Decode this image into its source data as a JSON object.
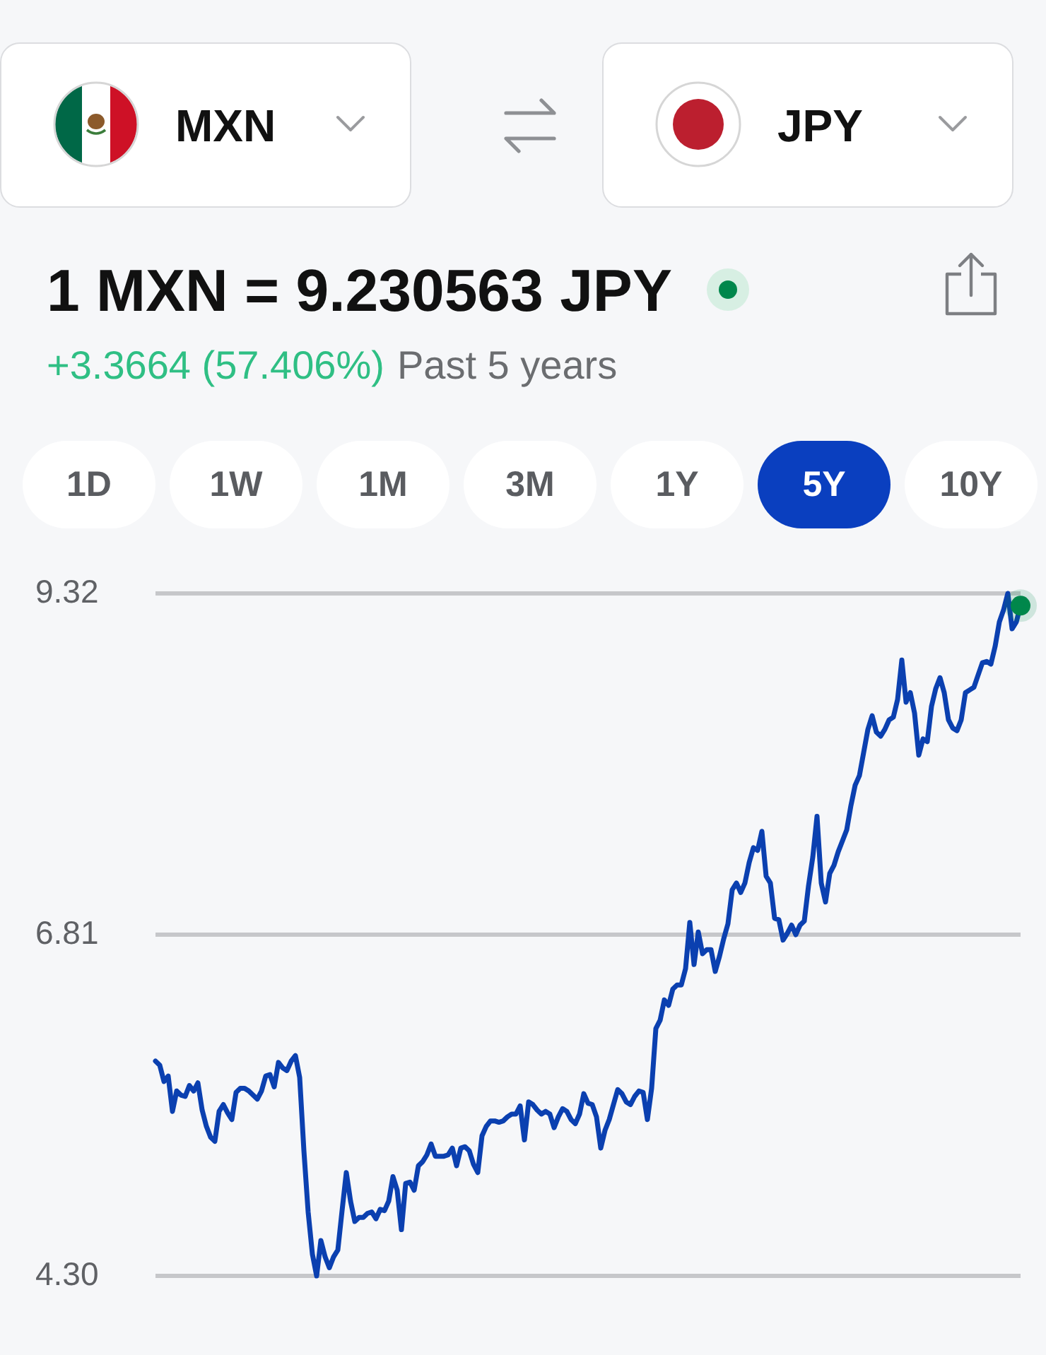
{
  "chart_data": {
    "type": "line",
    "title": "1 MXN = 9.230563 JPY",
    "subtitle": "+3.3664 (57.406%)",
    "annotations": [
      "Past 5 years",
      "MXN",
      "JPY",
      "1D",
      "1W",
      "1M",
      "3M",
      "1Y",
      "5Y",
      "10Y"
    ],
    "categories": [
      null,
      null,
      null,
      null,
      null,
      null,
      null,
      null,
      null,
      null,
      null,
      null,
      null,
      null,
      null,
      null,
      null,
      null,
      null,
      null,
      null,
      null,
      null,
      null,
      null,
      null,
      null,
      null,
      null,
      null,
      null,
      null,
      null,
      null,
      null,
      null,
      null,
      null,
      null,
      null,
      null,
      null,
      null,
      null,
      null,
      null,
      null,
      null,
      null,
      null,
      null,
      null,
      null,
      null,
      null,
      null,
      null,
      null,
      null,
      null,
      null,
      null,
      null,
      null,
      null,
      null,
      null,
      null,
      null,
      null,
      null,
      null,
      null,
      null,
      null,
      null,
      null,
      null,
      null,
      null,
      null,
      null,
      null,
      null,
      null,
      null,
      null,
      null,
      null,
      null,
      null,
      null,
      null,
      null,
      null,
      null,
      null,
      null,
      null,
      null,
      null,
      null,
      null,
      null,
      null,
      null,
      null,
      null,
      null,
      null,
      null,
      null,
      null,
      null,
      null,
      null,
      null,
      null,
      null,
      null,
      null,
      null,
      null,
      null,
      null,
      null,
      null,
      null,
      null,
      null,
      null,
      null,
      null,
      null,
      null,
      null,
      null,
      null,
      null,
      null,
      null,
      null,
      null,
      null,
      null,
      null,
      null,
      null,
      null,
      null,
      null,
      null,
      null,
      null,
      null,
      null,
      null,
      null,
      null,
      null,
      null,
      null,
      null,
      null,
      null,
      null,
      null,
      null,
      null,
      null,
      null,
      null,
      null,
      null,
      null,
      null,
      null,
      null,
      null,
      null,
      null,
      null,
      null,
      null,
      null,
      null,
      null,
      null,
      null,
      null,
      null,
      null,
      null,
      null,
      null,
      null,
      null,
      null,
      null,
      null,
      null,
      null,
      null,
      null,
      null
    ],
    "series": [
      {
        "color": "#0b40b0",
        "values": [
          5.88,
          5.85,
          5.73,
          5.77,
          5.51,
          5.66,
          5.63,
          5.62,
          5.7,
          5.66,
          5.72,
          5.52,
          5.4,
          5.32,
          5.29,
          5.51,
          5.56,
          5.5,
          5.45,
          5.65,
          5.68,
          5.68,
          5.66,
          5.63,
          5.6,
          5.66,
          5.77,
          5.78,
          5.69,
          5.87,
          5.83,
          5.81,
          5.88,
          5.92,
          5.76,
          5.22,
          4.77,
          4.46,
          4.3,
          4.56,
          4.44,
          4.36,
          4.44,
          4.49,
          4.78,
          5.06,
          4.85,
          4.7,
          4.73,
          4.73,
          4.76,
          4.77,
          4.72,
          4.79,
          4.78,
          4.85,
          5.03,
          4.93,
          4.64,
          4.98,
          4.99,
          4.93,
          5.11,
          5.14,
          5.19,
          5.27,
          5.18,
          5.18,
          5.18,
          5.19,
          5.24,
          5.11,
          5.24,
          5.25,
          5.22,
          5.12,
          5.06,
          5.33,
          5.4,
          5.44,
          5.44,
          5.43,
          5.44,
          5.47,
          5.49,
          5.49,
          5.55,
          5.3,
          5.58,
          5.56,
          5.52,
          5.49,
          5.51,
          5.49,
          5.39,
          5.47,
          5.53,
          5.51,
          5.45,
          5.42,
          5.49,
          5.64,
          5.57,
          5.56,
          5.47,
          5.24,
          5.37,
          5.45,
          5.56,
          5.67,
          5.64,
          5.58,
          5.56,
          5.62,
          5.66,
          5.65,
          5.45,
          5.68,
          6.12,
          6.18,
          6.33,
          6.29,
          6.41,
          6.44,
          6.44,
          6.56,
          6.9,
          6.59,
          6.83,
          6.67,
          6.7,
          6.7,
          6.54,
          6.65,
          6.78,
          6.89,
          7.14,
          7.19,
          7.12,
          7.19,
          7.34,
          7.45,
          7.43,
          7.57,
          7.24,
          7.19,
          6.93,
          6.92,
          6.77,
          6.82,
          6.88,
          6.81,
          6.88,
          6.91,
          7.17,
          7.38,
          7.68,
          7.19,
          7.05,
          7.26,
          7.32,
          7.42,
          7.5,
          7.58,
          7.76,
          7.91,
          7.98,
          8.15,
          8.32,
          8.42,
          8.3,
          8.27,
          8.32,
          8.39,
          8.41,
          8.54,
          8.83,
          8.52,
          8.59,
          8.44,
          8.13,
          8.25,
          8.23,
          8.49,
          8.62,
          8.7,
          8.59,
          8.39,
          8.33,
          8.31,
          8.39,
          8.59,
          8.61,
          8.63,
          8.72,
          8.81,
          8.82,
          8.8,
          8.93,
          9.11,
          9.2,
          9.32,
          9.06,
          9.11,
          9.23
        ]
      },
      {
        "type": "scatter",
        "color": "#00874c",
        "marker": "circle",
        "values": [
          null,
          null,
          null,
          null,
          null,
          null,
          null,
          null,
          null,
          null,
          null,
          null,
          null,
          null,
          null,
          null,
          null,
          null,
          null,
          null,
          null,
          null,
          null,
          null,
          null,
          null,
          null,
          null,
          null,
          null,
          null,
          null,
          null,
          null,
          null,
          null,
          null,
          null,
          null,
          null,
          null,
          null,
          null,
          null,
          null,
          null,
          null,
          null,
          null,
          null,
          null,
          null,
          null,
          null,
          null,
          null,
          null,
          null,
          null,
          null,
          null,
          null,
          null,
          null,
          null,
          null,
          null,
          null,
          null,
          null,
          null,
          null,
          null,
          null,
          null,
          null,
          null,
          null,
          null,
          null,
          null,
          null,
          null,
          null,
          null,
          null,
          null,
          null,
          null,
          null,
          null,
          null,
          null,
          null,
          null,
          null,
          null,
          null,
          null,
          null,
          null,
          null,
          null,
          null,
          null,
          null,
          null,
          null,
          null,
          null,
          null,
          null,
          null,
          null,
          null,
          null,
          null,
          null,
          null,
          null,
          null,
          null,
          null,
          null,
          null,
          null,
          null,
          null,
          null,
          null,
          null,
          null,
          null,
          null,
          null,
          null,
          null,
          null,
          null,
          null,
          null,
          null,
          null,
          null,
          null,
          null,
          null,
          null,
          null,
          null,
          null,
          null,
          null,
          null,
          null,
          null,
          null,
          null,
          null,
          null,
          null,
          null,
          null,
          null,
          null,
          null,
          null,
          null,
          null,
          null,
          null,
          null,
          null,
          null,
          null,
          null,
          null,
          null,
          null,
          null,
          null,
          null,
          null,
          null,
          null,
          null,
          null,
          null,
          null,
          null,
          null,
          null,
          null,
          null,
          null,
          null,
          null,
          null,
          null,
          null,
          null,
          null,
          null,
          null,
          9.23
        ]
      }
    ],
    "ylim": [
      4.3,
      9.32
    ],
    "yticks": [
      {
        "value": 4.3,
        "label": "4.30"
      },
      6.81,
      9.32
    ],
    "grid": "y",
    "tick_labels": "y"
  }
}
